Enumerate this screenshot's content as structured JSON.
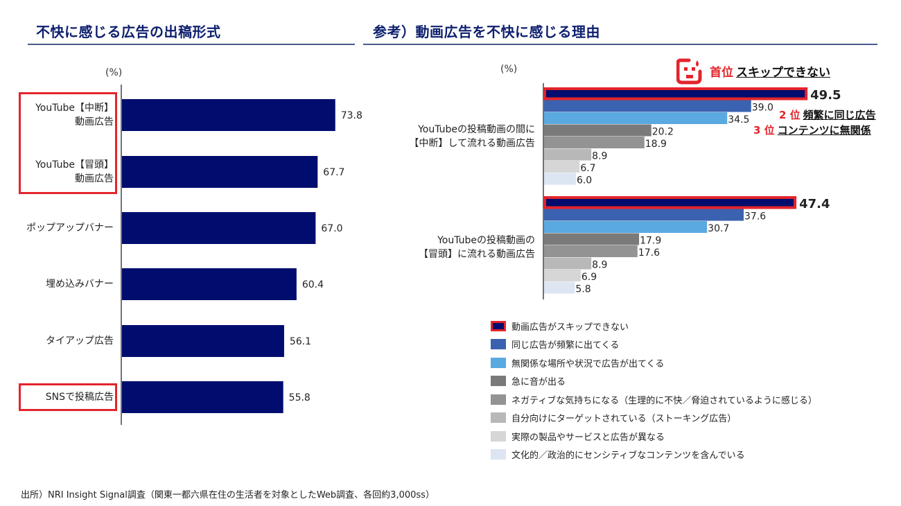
{
  "left_panel": {
    "title": "不快に感じる広告の出稿形式",
    "unit": "(%)"
  },
  "right_panel": {
    "title": "参考）動画広告を不快に感じる理由",
    "unit": "(%)",
    "ranks": [
      {
        "num": "首位",
        "text": "スキップできない"
      },
      {
        "num": "2 位",
        "text": "頻繁に同じ広告"
      },
      {
        "num": "3 位",
        "text": "コンテンツに無関係"
      }
    ],
    "icon": "troubled-face-icon"
  },
  "source": "出所）NRI Insight Signal調査（関東一都六県在住の生活者を対象としたWeb調査、各回約3,000ss）",
  "colors": {
    "navy": "#000d6e",
    "highlight_red": "#e3242b",
    "title_blue": "#0d1f6e"
  },
  "chart_data": [
    {
      "type": "bar",
      "orientation": "horizontal",
      "title": "不快に感じる広告の出稿形式",
      "xlabel": "(%)",
      "categories": [
        {
          "line1": "YouTube【中断】",
          "line2": "動画広告",
          "highlight": true
        },
        {
          "line1": "YouTube【冒頭】",
          "line2": "動画広告",
          "highlight": true
        },
        {
          "line1": "ポップアップバナー",
          "line2": "",
          "highlight": false
        },
        {
          "line1": "埋め込みバナー",
          "line2": "",
          "highlight": false
        },
        {
          "line1": "タイアップ広告",
          "line2": "",
          "highlight": false
        },
        {
          "line1": "SNSで投稿広告",
          "line2": "",
          "highlight": true
        }
      ],
      "values": [
        73.8,
        67.7,
        67.0,
        60.4,
        56.1,
        55.8
      ],
      "value_labels": [
        "73.8",
        "67.7",
        "67.0",
        "60.4",
        "56.1",
        "55.8"
      ],
      "xlim": [
        0,
        80
      ],
      "color": "#000d6e"
    },
    {
      "type": "bar",
      "orientation": "horizontal",
      "title": "参考）動画広告を不快に感じる理由",
      "xlabel": "(%)",
      "groups": [
        {
          "line1": "YouTubeの投稿動画の間に",
          "line2": "【中断】して流れる動画広告"
        },
        {
          "line1": "YouTubeの投稿動画の",
          "line2": "【冒頭】に流れる動画広告"
        }
      ],
      "series": [
        {
          "name": "動画広告がスキップできない",
          "color": "#000d6e",
          "values": [
            49.5,
            47.4
          ],
          "labels": [
            "49.5",
            "47.4"
          ],
          "highlight": true
        },
        {
          "name": "同じ広告が頻繁に出てくる",
          "color": "#3a62b0",
          "values": [
            39.0,
            37.6
          ],
          "labels": [
            "39.0",
            "37.6"
          ]
        },
        {
          "name": "無関係な場所や状況で広告が出てくる",
          "color": "#5aa9e0",
          "values": [
            34.5,
            30.7
          ],
          "labels": [
            "34.5",
            "30.7"
          ]
        },
        {
          "name": "急に音が出る",
          "color": "#7a7a7a",
          "values": [
            20.2,
            17.9
          ],
          "labels": [
            "20.2",
            "17.9"
          ]
        },
        {
          "name": "ネガティブな気持ちになる（生理的に不快／脅迫されているように感じる）",
          "color": "#939393",
          "values": [
            18.9,
            17.6
          ],
          "labels": [
            "18.9",
            "17.6"
          ]
        },
        {
          "name": "自分向けにターゲットされている（ストーキング広告）",
          "color": "#b8b8b8",
          "values": [
            8.9,
            8.9
          ],
          "labels": [
            "8.9",
            "8.9"
          ]
        },
        {
          "name": "実際の製品やサービスと広告が異なる",
          "color": "#d6d6d6",
          "values": [
            6.7,
            6.9
          ],
          "labels": [
            "6.7",
            "6.9"
          ]
        },
        {
          "name": "文化的／政治的にセンシティブなコンテンツを含んでいる",
          "color": "#dce5f1",
          "values": [
            6.0,
            5.8
          ],
          "labels": [
            "6.0",
            "5.8"
          ]
        }
      ],
      "xlim": [
        0,
        55
      ]
    }
  ]
}
